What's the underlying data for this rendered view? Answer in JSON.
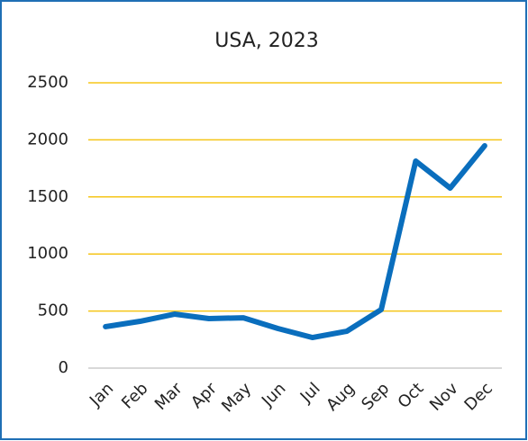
{
  "chart_data": {
    "type": "line",
    "title": "USA, 2023",
    "categories": [
      "Jan",
      "Feb",
      "Mar",
      "Apr",
      "May",
      "Jun",
      "Jul",
      "Aug",
      "Sep",
      "Oct",
      "Nov",
      "Dec"
    ],
    "series": [
      {
        "name": "USA",
        "color": "#0a6ebd",
        "values": [
          363,
          410,
          473,
          434,
          441,
          347,
          268,
          323,
          513,
          1814,
          1577,
          1948
        ]
      }
    ],
    "ylim": [
      0,
      2500
    ],
    "yticks": [
      0,
      500,
      1000,
      1500,
      2000,
      2500
    ],
    "grid": true,
    "grid_color": "#f5c518"
  }
}
